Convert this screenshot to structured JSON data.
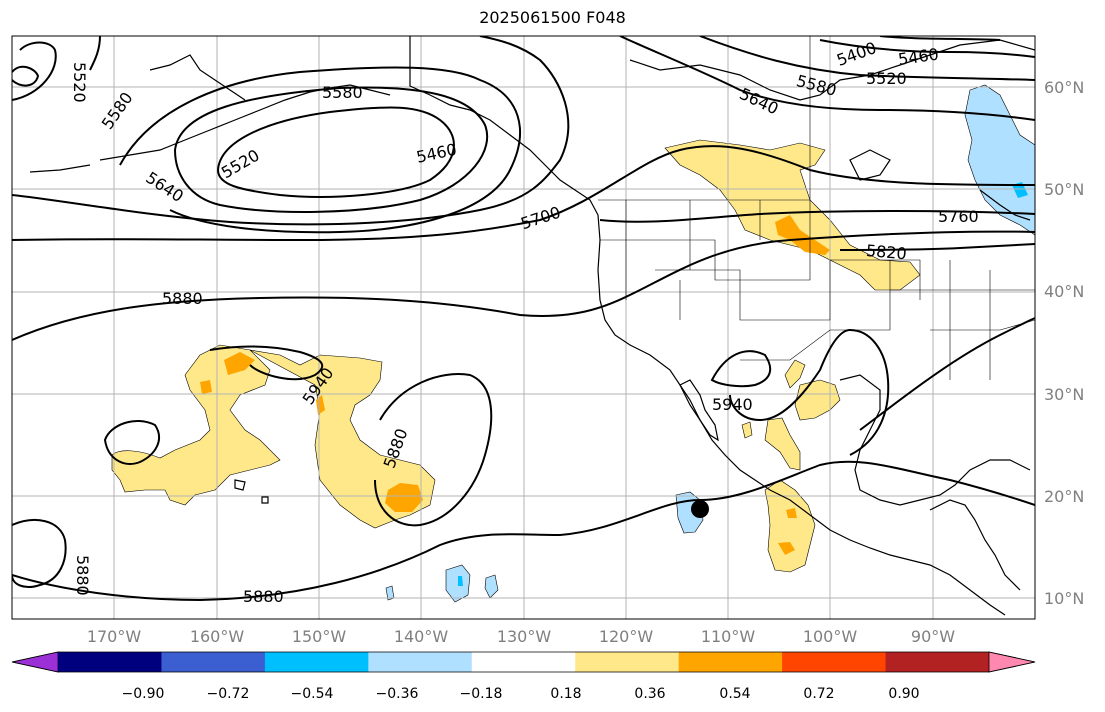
{
  "title": "2025061500 F048",
  "map": {
    "latitude_labels": [
      "60°N",
      "50°N",
      "40°N",
      "30°N",
      "20°N",
      "10°N"
    ],
    "longitude_labels": [
      "170°W",
      "160°W",
      "150°W",
      "140°W",
      "130°W",
      "120°W",
      "110°W",
      "100°W",
      "90°W"
    ],
    "contour_labels": [
      "5520",
      "5580",
      "5520",
      "5460",
      "5580",
      "5640",
      "5700",
      "5880",
      "5940",
      "5880",
      "5940",
      "5880",
      "5880",
      "5400",
      "5460",
      "5520",
      "5580",
      "5640",
      "5760",
      "5820"
    ],
    "colors": {
      "contour": "#000000",
      "coast": "#000000",
      "grid": "#b3b3b3",
      "marker": "#000000"
    }
  },
  "colorbar": {
    "ticks": [
      "−0.90",
      "−0.72",
      "−0.54",
      "−0.36",
      "−0.18",
      "0.18",
      "0.36",
      "0.54",
      "0.72",
      "0.90"
    ],
    "colors": [
      "#9b30d6",
      "#00007f",
      "#3b5fd0",
      "#00bfff",
      "#b0e0ff",
      "#ffffff",
      "#ffe88a",
      "#ffa500",
      "#ff4500",
      "#b22222",
      "#ff88b0"
    ]
  }
}
